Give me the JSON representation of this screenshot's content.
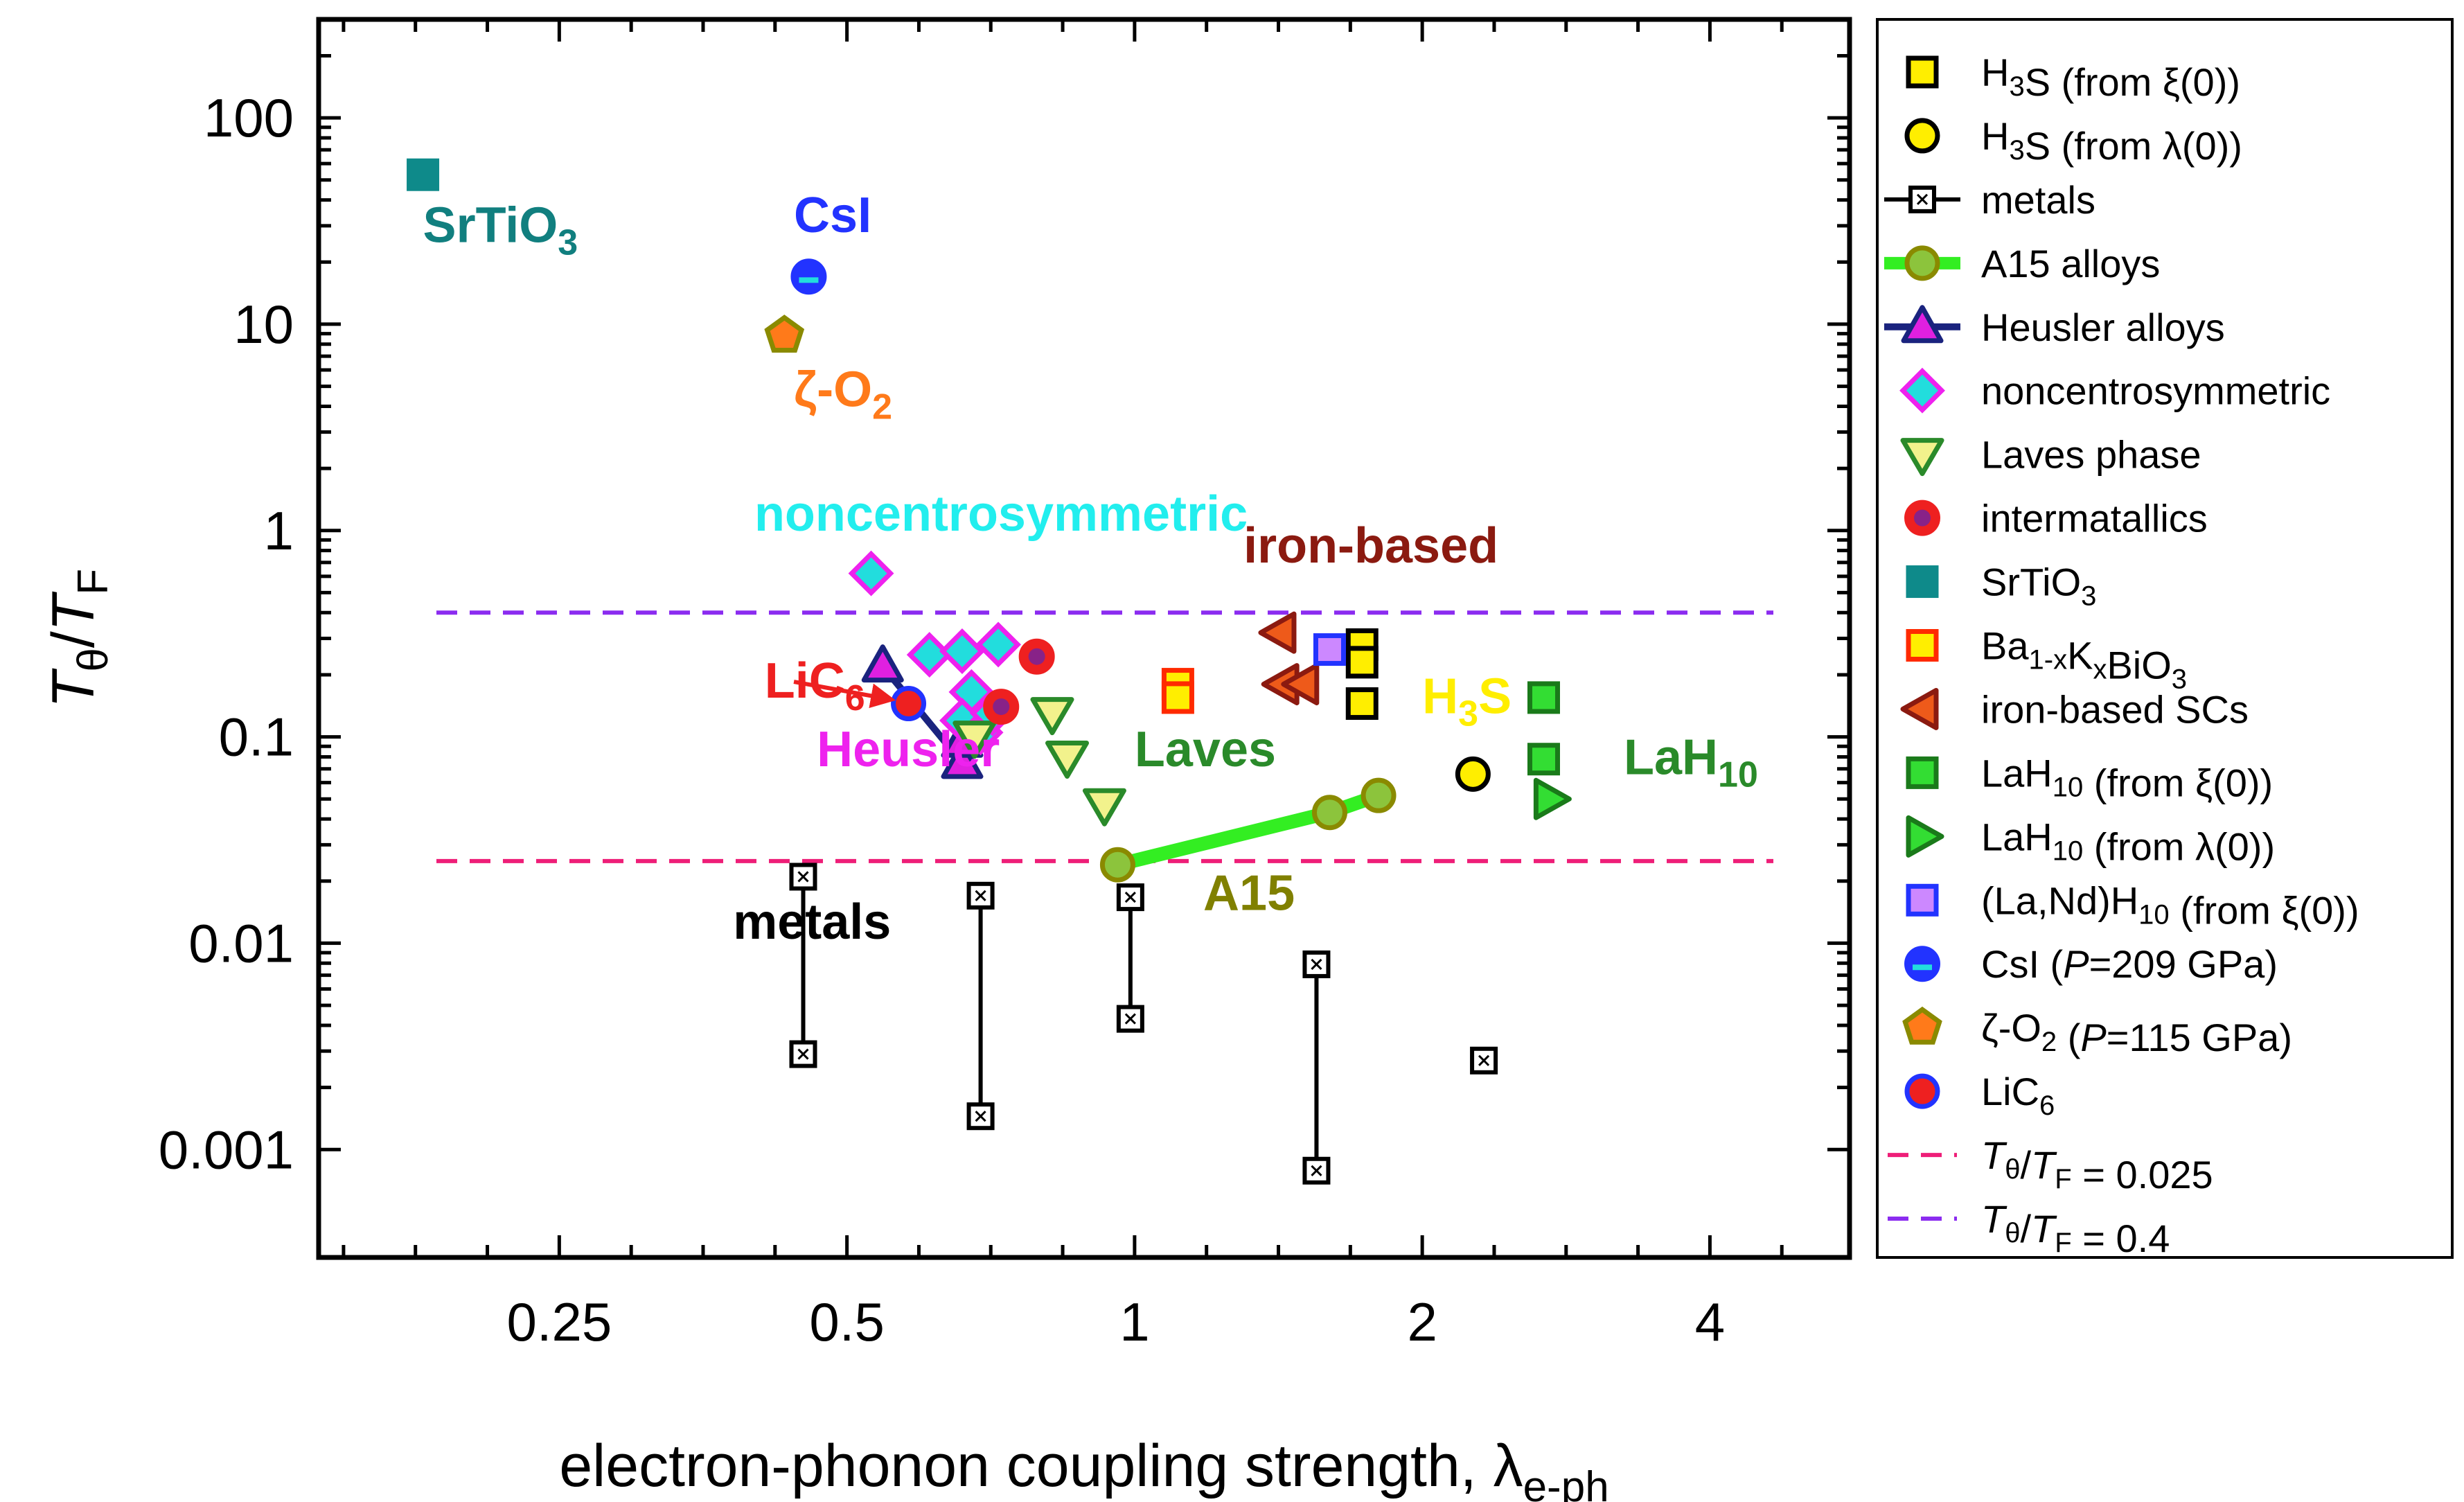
{
  "chart_data": {
    "type": "scatter",
    "xlabel": "electron-phonon coupling strength, λe-ph",
    "xlabel_main": "electron-phonon coupling strength, λ",
    "xlabel_sub": "e-ph",
    "ylabel": "Tθ/TF",
    "ylabel_T": "T",
    "ylabel_sub1": "θ",
    "ylabel_slash": "/",
    "ylabel_sub2": "F",
    "xscale": "log2",
    "yscale": "log10",
    "xlim": [
      0.14,
      5.6
    ],
    "ylim": [
      0.0003,
      300
    ],
    "xticks": [
      {
        "v": 0.25,
        "label": "0.25"
      },
      {
        "v": 0.5,
        "label": "0.5"
      },
      {
        "v": 1,
        "label": "1"
      },
      {
        "v": 2,
        "label": "2"
      },
      {
        "v": 4,
        "label": "4"
      }
    ],
    "yticks": [
      {
        "v": 0.001,
        "label": "0.001"
      },
      {
        "v": 0.01,
        "label": "0.01"
      },
      {
        "v": 0.1,
        "label": "0.1"
      },
      {
        "v": 1,
        "label": "1"
      },
      {
        "v": 10,
        "label": "10"
      },
      {
        "v": 100,
        "label": "100"
      }
    ],
    "hlines": [
      {
        "name": "Tθ/TF = 0.025",
        "y": 0.025,
        "color": "#ee1e78"
      },
      {
        "name": "Tθ/TF = 0.4",
        "y": 0.4,
        "color": "#8b2cf0"
      }
    ],
    "series": [
      {
        "id": "metals",
        "name": "metals",
        "marker": "sq-x",
        "fill": "#ffffff",
        "stroke": "#000000",
        "segments": [
          [
            [
              0.45,
              0.021
            ],
            [
              0.45,
              0.0029
            ]
          ],
          [
            [
              0.69,
              0.017
            ],
            [
              0.69,
              0.00145
            ]
          ],
          [
            [
              0.99,
              0.0167
            ],
            [
              0.99,
              0.0043
            ]
          ],
          [
            [
              1.55,
              0.0079
            ],
            [
              1.55,
              0.00079
            ]
          ]
        ],
        "points": [
          [
            0.45,
            0.021
          ],
          [
            0.45,
            0.0029
          ],
          [
            0.69,
            0.017
          ],
          [
            0.69,
            0.00145
          ],
          [
            0.99,
            0.0167
          ],
          [
            0.99,
            0.0043
          ],
          [
            1.55,
            0.0079
          ],
          [
            1.55,
            0.00079
          ],
          [
            2.32,
            0.0027
          ]
        ]
      },
      {
        "id": "a15",
        "name": "A15 alloys",
        "marker": "circle",
        "fill": "#8cc43c",
        "stroke": "#8a8a00",
        "line_color": "#33ee22",
        "segments": [
          [
            [
              0.96,
              0.024
            ],
            [
              1.6,
              0.043
            ],
            [
              1.8,
              0.052
            ]
          ]
        ],
        "points": [
          [
            0.96,
            0.024
          ],
          [
            1.6,
            0.043
          ],
          [
            1.8,
            0.052
          ]
        ]
      },
      {
        "id": "heusler",
        "name": "Heusler alloys",
        "marker": "tri-up",
        "fill": "#e020e0",
        "stroke": "#1a237e",
        "line_color": "#1a237e",
        "segments": [
          [
            [
              0.545,
              0.22
            ],
            [
              0.66,
              0.075
            ]
          ]
        ],
        "points": [
          [
            0.545,
            0.22
          ],
          [
            0.66,
            0.075
          ],
          [
            0.66,
            0.095
          ]
        ]
      },
      {
        "id": "noncentro",
        "name": "noncentrosymmetric",
        "marker": "diamond",
        "fill": "#22dddd",
        "stroke": "#ee22ee",
        "points": [
          [
            0.53,
            0.62
          ],
          [
            0.61,
            0.25
          ],
          [
            0.66,
            0.26
          ],
          [
            0.72,
            0.28
          ],
          [
            0.675,
            0.165
          ],
          [
            0.66,
            0.12
          ],
          [
            0.69,
            0.105
          ],
          [
            0.71,
            0.13
          ]
        ]
      },
      {
        "id": "laves",
        "name": "Laves phase",
        "marker": "tri-down",
        "fill": "#f2f28c",
        "stroke": "#2a8a2a",
        "points": [
          [
            0.68,
            0.1
          ],
          [
            0.82,
            0.13
          ],
          [
            0.85,
            0.08
          ],
          [
            0.93,
            0.047
          ]
        ]
      },
      {
        "id": "intermet",
        "name": "intermatallics",
        "marker": "circle-dot",
        "fill": "#ee2020",
        "stroke": "#ee2020",
        "dot": "#882288",
        "points": [
          [
            0.79,
            0.245
          ],
          [
            0.725,
            0.14
          ]
        ]
      },
      {
        "id": "srtio3",
        "name": "SrTiO3",
        "marker": "square",
        "fill": "#0e8a8a",
        "stroke": "#0e8a8a",
        "points": [
          [
            0.18,
            53
          ]
        ]
      },
      {
        "id": "bakbio",
        "name": "Ba1-xKxBiO3",
        "marker": "square",
        "fill": "#ffee00",
        "stroke": "#ff2a00",
        "points": [
          [
            1.11,
            0.18
          ],
          [
            1.11,
            0.155
          ]
        ]
      },
      {
        "id": "iron",
        "name": "iron-based SCs",
        "marker": "tri-left",
        "fill": "#ee5a1a",
        "stroke": "#8b1a10",
        "points": [
          [
            1.42,
            0.32
          ],
          [
            1.43,
            0.18
          ],
          [
            1.5,
            0.18
          ]
        ]
      },
      {
        "id": "h3s_xi",
        "name": "H3S (from ξ(0))",
        "marker": "square",
        "fill": "#ffee00",
        "stroke": "#000000",
        "points": [
          [
            1.73,
            0.28
          ],
          [
            1.73,
            0.23
          ],
          [
            1.73,
            0.145
          ]
        ]
      },
      {
        "id": "h3s_lam",
        "name": "H3S (from λ(0))",
        "marker": "circle",
        "fill": "#ffee00",
        "stroke": "#000000",
        "points": [
          [
            2.26,
            0.066
          ]
        ]
      },
      {
        "id": "lah10_xi",
        "name": "LaH10 (from ξ(0))",
        "marker": "square",
        "fill": "#33dd33",
        "stroke": "#1a7a1a",
        "points": [
          [
            2.68,
            0.155
          ],
          [
            2.68,
            0.078
          ]
        ]
      },
      {
        "id": "lah10_lam",
        "name": "LaH10 (from λ(0))",
        "marker": "tri-right",
        "fill": "#33dd33",
        "stroke": "#1a7a1a",
        "points": [
          [
            2.72,
            0.05
          ]
        ]
      },
      {
        "id": "landh10",
        "name": "(La,Nd)H10 (from ξ(0))",
        "marker": "square",
        "fill": "#cc88ff",
        "stroke": "#2233ff",
        "points": [
          [
            1.6,
            0.265
          ]
        ]
      },
      {
        "id": "csi",
        "name": "CsI (P=209 GPa)",
        "marker": "half-circle",
        "fill": "#2233ff",
        "stroke": "#2233ff",
        "fill2": "#22dddd",
        "points": [
          [
            0.456,
            17
          ]
        ]
      },
      {
        "id": "zo2",
        "name": "ζ-O2 (P=115 GPa)",
        "marker": "pentagon",
        "fill": "#ff7a1a",
        "stroke": "#8a8a00",
        "points": [
          [
            0.43,
            8.8
          ]
        ]
      },
      {
        "id": "lic6",
        "name": "LiC6",
        "marker": "circle",
        "fill": "#ee2020",
        "stroke": "#2233ff",
        "points": [
          [
            0.58,
            0.145
          ]
        ]
      }
    ],
    "annotations": [
      {
        "id": "srtio3",
        "text": "SrTiO",
        "sub": "3",
        "x": 0.18,
        "y": 25,
        "color": "#117f7f"
      },
      {
        "id": "csi",
        "text": "CsI",
        "x": 0.44,
        "y": 28,
        "color": "#2233ff"
      },
      {
        "id": "zo2",
        "text": "ζ-O",
        "sub": "2",
        "x": 0.44,
        "y": 4.0,
        "color": "#ff7a1a"
      },
      {
        "id": "noncentro",
        "text": "noncentrosymmetric",
        "x": 0.4,
        "y": 1.0,
        "color": "#22eeee"
      },
      {
        "id": "ironbased",
        "text": "iron-based",
        "x": 1.3,
        "y": 0.7,
        "color": "#8b1a10"
      },
      {
        "id": "lic6",
        "text": "LiC",
        "sub": "6",
        "x": 0.41,
        "y": 0.155,
        "color": "#ee2020"
      },
      {
        "id": "heusler",
        "text": "Heusler",
        "x": 0.465,
        "y": 0.072,
        "color": "#ee22ee"
      },
      {
        "id": "laves",
        "text": "Laves",
        "x": 1.0,
        "y": 0.072,
        "color": "#2a8a2a"
      },
      {
        "id": "h3s",
        "text": "H",
        "sub": "3",
        "tail": "S",
        "x": 2.0,
        "y": 0.13,
        "color": "#ffee00"
      },
      {
        "id": "lah10",
        "text": "LaH",
        "sub": "10",
        "x": 3.25,
        "y": 0.066,
        "color": "#2a8a2a"
      },
      {
        "id": "a15",
        "text": "A15",
        "x": 1.18,
        "y": 0.0145,
        "color": "#808000"
      },
      {
        "id": "metals",
        "text": "metals",
        "x": 0.38,
        "y": 0.0105,
        "color": "#000000"
      }
    ],
    "arrow": {
      "from": [
        0.44,
        0.185
      ],
      "to": [
        0.57,
        0.147
      ],
      "color": "#ee2020"
    },
    "legend": {
      "placement": "right",
      "items": [
        {
          "series": "h3s_xi",
          "html": [
            "H",
            {
              "sub": "3"
            },
            "S (from ξ(0))"
          ]
        },
        {
          "series": "h3s_lam",
          "html": [
            "H",
            {
              "sub": "3"
            },
            "S (from λ(0))"
          ]
        },
        {
          "series": "metals",
          "line": true,
          "html": [
            "metals"
          ]
        },
        {
          "series": "a15",
          "line": true,
          "html": [
            "A15 alloys"
          ]
        },
        {
          "series": "heusler",
          "line": true,
          "html": [
            "Heusler alloys"
          ]
        },
        {
          "series": "noncentro",
          "html": [
            "noncentrosymmetric"
          ]
        },
        {
          "series": "laves",
          "html": [
            "Laves phase"
          ]
        },
        {
          "series": "intermet",
          "html": [
            " intermatallics"
          ]
        },
        {
          "series": "srtio3",
          "html": [
            "SrTiO",
            {
              "sub": "3"
            }
          ]
        },
        {
          "series": "bakbio",
          "html": [
            "Ba",
            {
              "sub": "1-x"
            },
            "K",
            {
              "sub": "x"
            },
            "BiO",
            {
              "sub": "3"
            }
          ]
        },
        {
          "series": "iron",
          "html": [
            "iron-based SCs"
          ]
        },
        {
          "series": "lah10_xi",
          "html": [
            "LaH",
            {
              "sub": "10"
            },
            " (from ξ(0))"
          ]
        },
        {
          "series": "lah10_lam",
          "html": [
            "LaH",
            {
              "sub": "10"
            },
            " (from λ(0))"
          ]
        },
        {
          "series": "landh10",
          "html": [
            "(La,Nd)H",
            {
              "sub": "10"
            },
            " (from ξ(0))"
          ]
        },
        {
          "series": "csi",
          "html": [
            "CsI (",
            {
              "i": "P"
            },
            "=209 GPa)"
          ]
        },
        {
          "series": "zo2",
          "html": [
            "ζ-O",
            {
              "sub": "2"
            },
            " (",
            {
              "i": "P"
            },
            "=115 GPa)"
          ]
        },
        {
          "series": "lic6",
          "html": [
            "LiC",
            {
              "sub": "6"
            }
          ]
        },
        {
          "hline": 0,
          "html": [
            {
              "i": "T"
            },
            {
              "sub": "θ"
            },
            "/",
            {
              "i": "T"
            },
            {
              "sub": "F"
            },
            " = 0.025"
          ]
        },
        {
          "hline": 1,
          "html": [
            {
              "i": "T"
            },
            {
              "sub": "θ"
            },
            "/",
            {
              "i": "T"
            },
            {
              "sub": "F"
            },
            " = 0.4"
          ]
        }
      ]
    }
  }
}
